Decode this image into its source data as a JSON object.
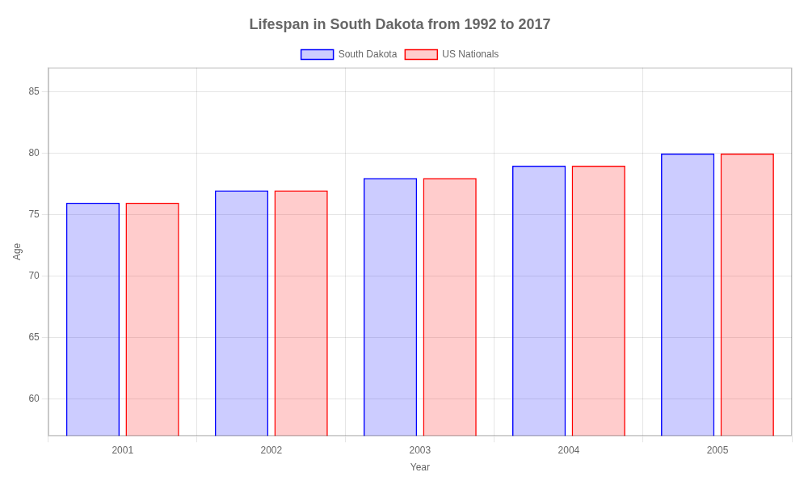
{
  "chart_data": {
    "type": "bar",
    "title": "Lifespan in South Dakota from 1992 to 2017",
    "x_label": "Year",
    "y_label": "Age",
    "categories": [
      2001,
      2002,
      2003,
      2004,
      2005
    ],
    "series": [
      {
        "name": "South Dakota",
        "color": "#0000ff",
        "values": [
          76.0,
          77.0,
          78.0,
          79.0,
          80.0
        ]
      },
      {
        "name": "US Nationals",
        "color": "#ff0000",
        "values": [
          76.0,
          77.0,
          78.0,
          79.0,
          80.0
        ]
      }
    ],
    "ylim": [
      57,
      87
    ],
    "yticks": [
      60,
      65,
      70,
      75,
      80,
      85
    ],
    "grid": true,
    "legend": "top"
  }
}
